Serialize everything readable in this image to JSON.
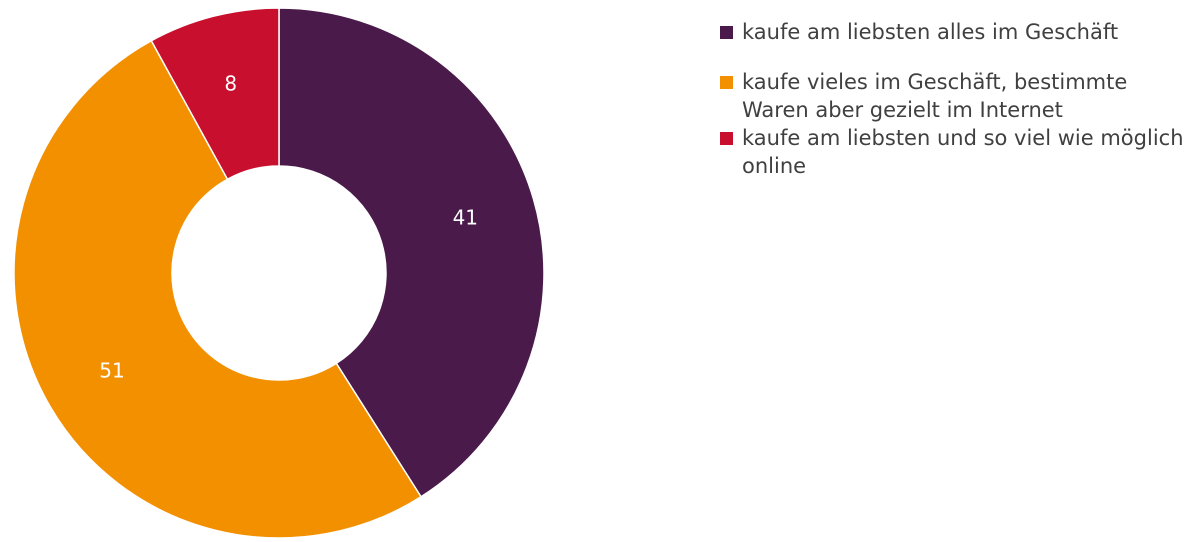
{
  "chart_data": {
    "type": "pie",
    "donut": true,
    "title": "",
    "categories": [
      "kaufe am liebsten alles im Geschäft",
      "kaufe vieles im Geschäft, bestimmte Waren aber gezielt im Internet",
      "kaufe am liebsten und so viel wie möglich online"
    ],
    "values": [
      41,
      51,
      8
    ],
    "data_labels": [
      "41",
      "51",
      "8"
    ],
    "colors": [
      "#4a1a4b",
      "#f29000",
      "#c8102e"
    ],
    "legend_placement": "right",
    "start_angle_deg": 0,
    "direction": "clockwise"
  }
}
